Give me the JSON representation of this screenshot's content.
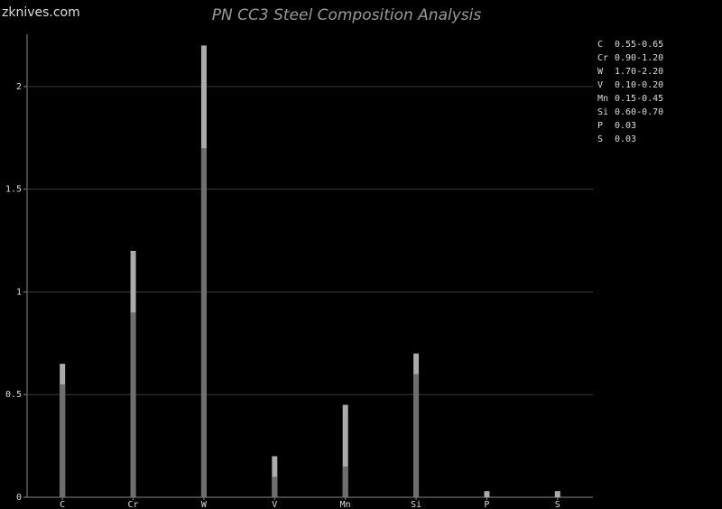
{
  "chart_data": {
    "type": "range_bar",
    "title": "PN CC3 Steel Composition Analysis",
    "watermark": "zknives.com",
    "categories": [
      "C",
      "Cr",
      "W",
      "V",
      "Mn",
      "Si",
      "P",
      "S"
    ],
    "low": [
      0.55,
      0.9,
      1.7,
      0.1,
      0.15,
      0.6,
      null,
      null
    ],
    "high": [
      0.65,
      1.2,
      2.2,
      0.2,
      0.45,
      0.7,
      0.03,
      0.03
    ],
    "value_labels": [
      "0.55-0.65",
      "0.90-1.20",
      "1.70-2.20",
      "0.10-0.20",
      "0.15-0.45",
      "0.60-0.70",
      "0.03",
      "0.03"
    ],
    "low_color": "#6e6e6e",
    "high_color": "#ababab",
    "ylim": [
      0,
      2.25
    ],
    "yticks": [
      0,
      0.5,
      1,
      1.5,
      2
    ],
    "grid": true
  }
}
